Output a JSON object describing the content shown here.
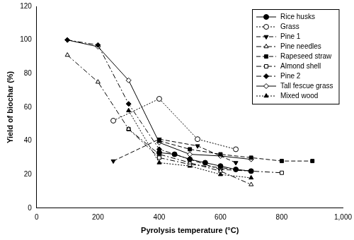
{
  "chart_data": {
    "type": "line",
    "x_label": "Pyrolysis temperature (°C)",
    "y_label": "Yield of biochar (%)",
    "xlim": [
      0,
      1000
    ],
    "xticks": [
      0,
      200,
      400,
      600,
      800,
      1000
    ],
    "ylim": [
      0,
      120
    ],
    "yticks": [
      0,
      20,
      40,
      60,
      80,
      100,
      120
    ],
    "grid": false,
    "legend": "upper right",
    "series": [
      {
        "name": "Rice husks",
        "color": "#000000",
        "marker": "circle",
        "line_style": "solid",
        "x": [
          400,
          450,
          500,
          550,
          600,
          650,
          700
        ],
        "values": [
          33,
          32,
          29,
          27,
          25,
          23,
          22
        ]
      },
      {
        "name": "Grass",
        "color": "#000000",
        "marker": "open_circle",
        "line_style": "dotted",
        "x": [
          250,
          400,
          525,
          650
        ],
        "values": [
          52,
          65,
          41,
          35
        ]
      },
      {
        "name": "Pine 1",
        "color": "#000000",
        "marker": "triangle_down",
        "line_style": "dashed",
        "x": [
          250,
          400,
          525,
          650
        ],
        "values": [
          28,
          41,
          37,
          27
        ]
      },
      {
        "name": "Pine needles",
        "color": "#000000",
        "marker": "open_triangle",
        "line_style": "dashdot",
        "x": [
          100,
          200,
          300,
          400,
          500,
          600,
          700
        ],
        "values": [
          91,
          75,
          47,
          32,
          27,
          22,
          14
        ]
      },
      {
        "name": "Rapeseed straw",
        "color": "#000000",
        "marker": "square",
        "line_style": "dashed",
        "x": [
          400,
          500,
          600,
          700,
          800,
          900
        ],
        "values": [
          40,
          35,
          32,
          30,
          28,
          28
        ]
      },
      {
        "name": "Almond shell",
        "color": "#000000",
        "marker": "open_square",
        "line_style": "dashdot",
        "x": [
          300,
          400,
          500,
          600,
          700,
          800
        ],
        "values": [
          47,
          30,
          26,
          24,
          22,
          21
        ]
      },
      {
        "name": "Pine 2",
        "color": "#000000",
        "marker": "diamond",
        "line_style": "dashdot",
        "x": [
          100,
          200,
          300,
          400,
          500,
          600,
          700
        ],
        "values": [
          100,
          97,
          62,
          35,
          29,
          23,
          22
        ]
      },
      {
        "name": "Tall fescue grass",
        "color": "#000000",
        "marker": "open_diamond",
        "line_style": "solid",
        "x": [
          100,
          200,
          300,
          400,
          500,
          600,
          700
        ],
        "values": [
          100,
          96,
          76,
          39,
          32,
          31,
          29
        ]
      },
      {
        "name": "Mixed wood",
        "color": "#000000",
        "marker": "triangle",
        "line_style": "dotted",
        "x": [
          300,
          400,
          500,
          600,
          700
        ],
        "values": [
          58,
          27,
          25,
          20,
          18
        ]
      }
    ]
  }
}
